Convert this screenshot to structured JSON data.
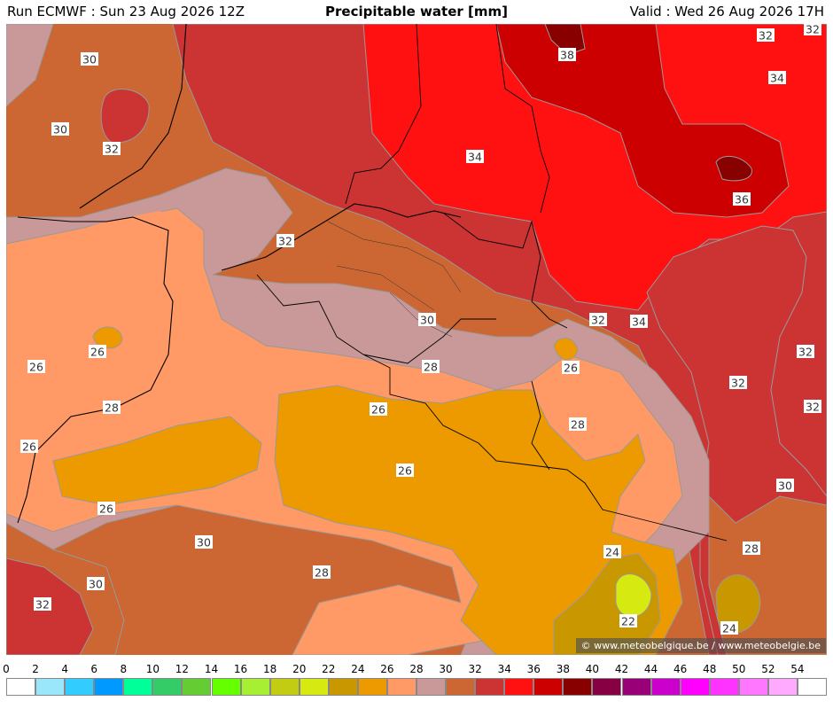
{
  "header": {
    "run": "Run ECMWF : Sun 23 Aug 2026 12Z",
    "title": "Precipitable water [mm]",
    "valid": "Valid : Wed 26 Aug 2026 17H"
  },
  "credit": "© www.meteobelgique.be / www.meteobelgie.be",
  "scale": {
    "ticks": [
      "0",
      "2",
      "4",
      "6",
      "8",
      "10",
      "12",
      "14",
      "16",
      "18",
      "20",
      "22",
      "24",
      "26",
      "28",
      "30",
      "32",
      "34",
      "36",
      "38",
      "40",
      "42",
      "44",
      "46",
      "48",
      "50",
      "52",
      "54"
    ],
    "colors": [
      "#ffffff",
      "#9ae6fb",
      "#33ccff",
      "#0099ff",
      "#00ff99",
      "#33cc66",
      "#66cc33",
      "#66ff00",
      "#a6ef33",
      "#c2cc12",
      "#d6ea12",
      "#c99700",
      "#ec9a00",
      "#ff9966",
      "#c99999",
      "#cc6633",
      "#cc3333",
      "#ff1111",
      "#cc0000",
      "#880000",
      "#880044",
      "#990077",
      "#cc00cc",
      "#ff00ff",
      "#ff33ff",
      "#ff77ff",
      "#ffaaff",
      "#ffffff"
    ]
  },
  "contour_labels": [
    "22",
    "24",
    "26",
    "28",
    "30",
    "32",
    "34",
    "36",
    "38"
  ],
  "map": {
    "field": "Precipitable water",
    "unit": "mm"
  }
}
